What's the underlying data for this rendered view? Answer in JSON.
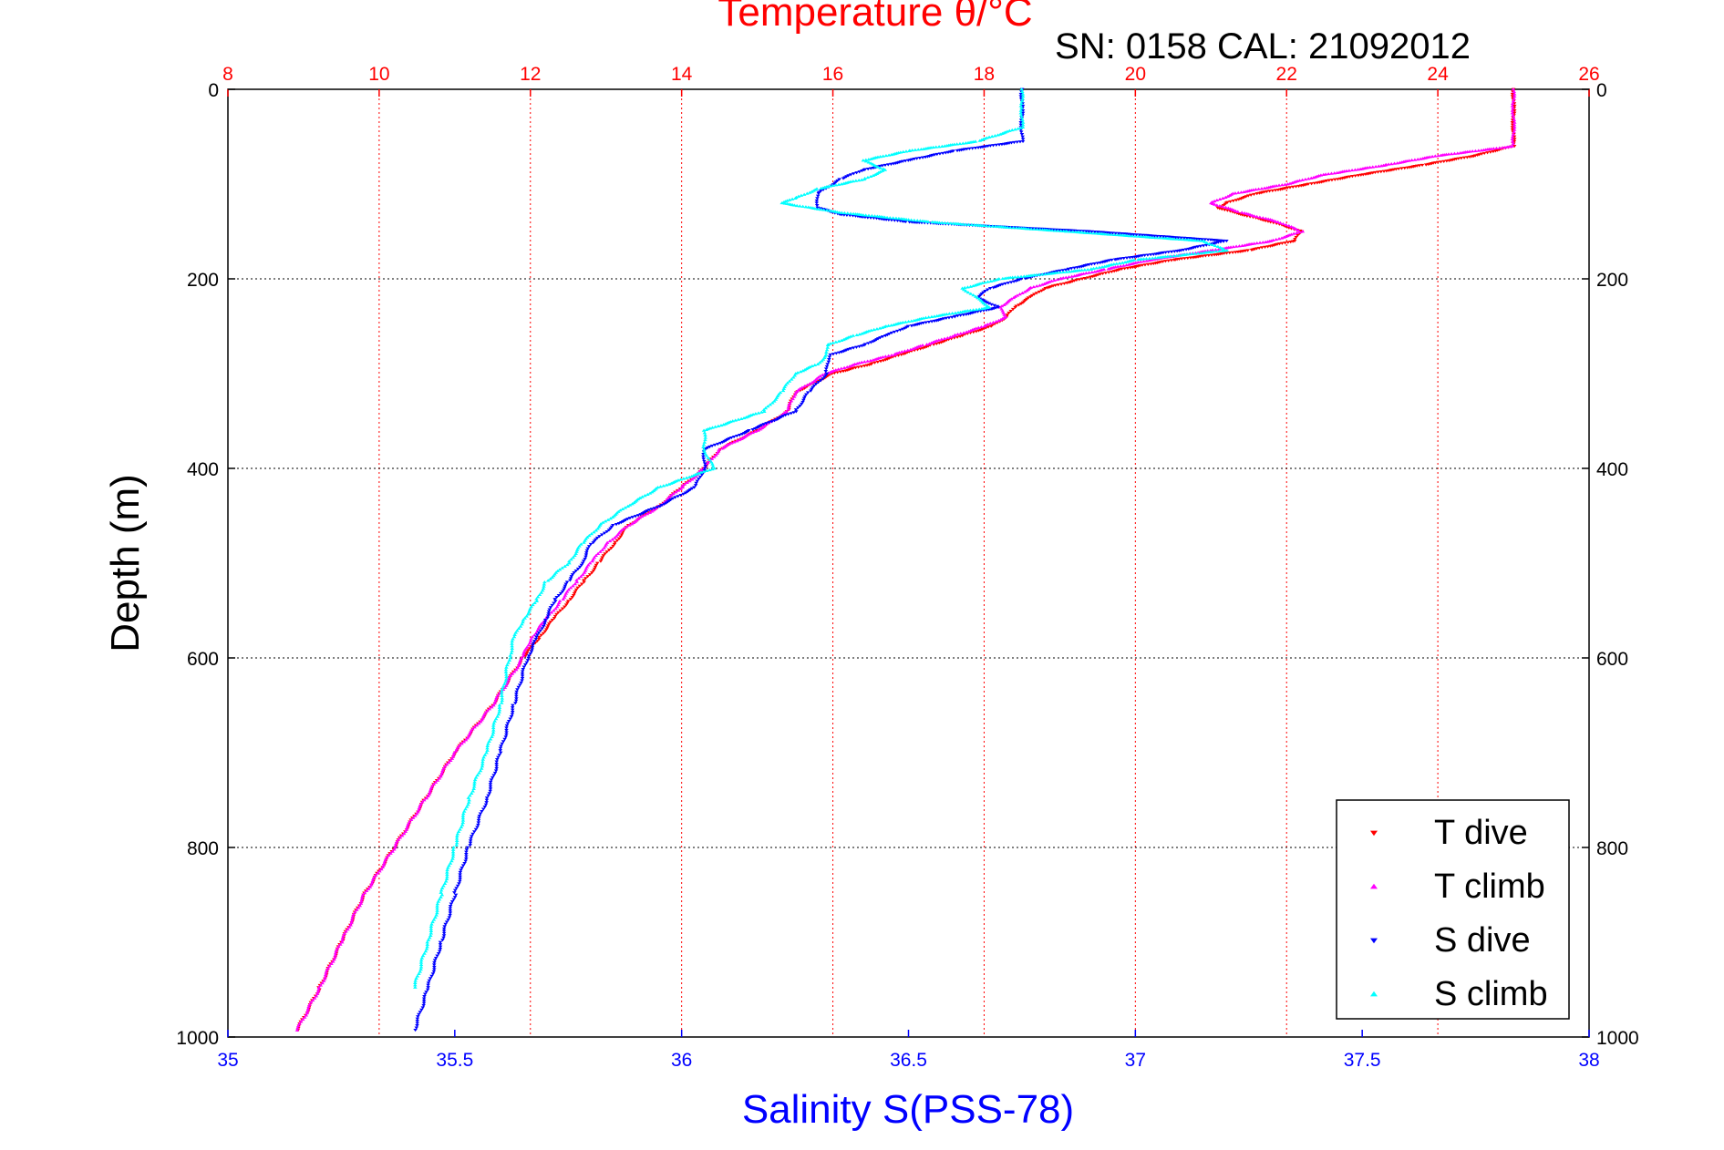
{
  "chart_data": {
    "type": "scatter",
    "annotation": "SN: 0158  CAL: 21092012",
    "xlabel_top": "Temperature θ/°C",
    "xlabel_bottom": "Salinity S(PSS-78)",
    "ylabel": "Depth (m)",
    "temperature_axis": {
      "range": [
        8,
        26
      ],
      "ticks": [
        "8",
        "10",
        "12",
        "14",
        "16",
        "18",
        "20",
        "22",
        "24",
        "26"
      ],
      "color": "#ff0000"
    },
    "salinity_axis": {
      "range": [
        35,
        38
      ],
      "ticks": [
        "35",
        "35.5",
        "36",
        "36.5",
        "37",
        "37.5",
        "38"
      ],
      "color": "#0000ff"
    },
    "depth_axis": {
      "range": [
        0,
        1000
      ],
      "reversed": true,
      "ticks_left": [
        "0",
        "200",
        "400",
        "600",
        "800",
        "1000"
      ],
      "ticks_right": [
        "0",
        "200",
        "400",
        "600",
        "800",
        "1000"
      ]
    },
    "grid": true,
    "legend_position": "bottom-right",
    "series": [
      {
        "name": "T dive",
        "axis": "temperature",
        "color": "#ff0000",
        "marker": "triangle-down",
        "depth": [
          0,
          20,
          40,
          60,
          70,
          80,
          90,
          100,
          110,
          120,
          125,
          130,
          140,
          150,
          160,
          170,
          180,
          190,
          200,
          210,
          220,
          230,
          240,
          250,
          260,
          270,
          280,
          290,
          300,
          320,
          340,
          360,
          380,
          400,
          420,
          440,
          460,
          480,
          500,
          520,
          540,
          560,
          580,
          600,
          650,
          700,
          750,
          800,
          850,
          900,
          950,
          995
        ],
        "values": [
          25.0,
          25.0,
          25.0,
          25.0,
          24.5,
          23.8,
          23.0,
          22.3,
          21.6,
          21.2,
          21.1,
          21.3,
          21.8,
          22.2,
          22.1,
          21.5,
          20.5,
          19.8,
          19.3,
          18.8,
          18.6,
          18.4,
          18.3,
          18.1,
          17.7,
          17.3,
          16.9,
          16.5,
          16.0,
          15.5,
          15.4,
          15.0,
          14.5,
          14.3,
          14.0,
          13.7,
          13.3,
          13.1,
          12.9,
          12.7,
          12.5,
          12.3,
          12.1,
          11.9,
          11.5,
          11.0,
          10.6,
          10.2,
          9.8,
          9.5,
          9.2,
          8.9
        ]
      },
      {
        "name": "T climb",
        "axis": "temperature",
        "color": "#ff00ff",
        "marker": "triangle-up",
        "depth": [
          0,
          20,
          40,
          60,
          70,
          80,
          90,
          100,
          110,
          120,
          130,
          140,
          150,
          160,
          170,
          180,
          190,
          200,
          210,
          220,
          230,
          240,
          250,
          260,
          270,
          280,
          290,
          300,
          320,
          340,
          360,
          380,
          400,
          420,
          440,
          460,
          480,
          500,
          520,
          540,
          560,
          580,
          600,
          650,
          700,
          750,
          800,
          850,
          900,
          950,
          995
        ],
        "values": [
          25.0,
          25.0,
          25.0,
          25.0,
          24.0,
          23.3,
          22.5,
          22.0,
          21.3,
          21.0,
          21.4,
          21.9,
          22.2,
          21.8,
          21.0,
          20.2,
          19.6,
          19.0,
          18.6,
          18.4,
          18.2,
          18.3,
          18.0,
          17.6,
          17.2,
          16.8,
          16.3,
          15.9,
          15.5,
          15.4,
          15.0,
          14.5,
          14.3,
          14.0,
          13.7,
          13.3,
          13.0,
          12.8,
          12.6,
          12.4,
          12.2,
          12.0,
          11.9,
          11.5,
          11.0,
          10.6,
          10.2,
          9.8,
          9.5,
          9.2,
          8.9
        ]
      },
      {
        "name": "S dive",
        "axis": "salinity",
        "color": "#0000ff",
        "marker": "triangle-down",
        "depth": [
          0,
          20,
          40,
          55,
          65,
          75,
          85,
          95,
          110,
          125,
          132,
          140,
          150,
          160,
          170,
          180,
          190,
          200,
          210,
          220,
          230,
          240,
          250,
          260,
          270,
          280,
          290,
          300,
          320,
          340,
          360,
          380,
          400,
          420,
          440,
          460,
          480,
          500,
          520,
          540,
          560,
          580,
          600,
          650,
          700,
          750,
          800,
          850,
          900,
          950,
          995
        ],
        "values": [
          36.75,
          36.75,
          36.75,
          36.75,
          36.6,
          36.5,
          36.4,
          36.35,
          36.3,
          36.3,
          36.35,
          36.5,
          36.9,
          37.2,
          37.1,
          36.95,
          36.85,
          36.75,
          36.68,
          36.65,
          36.7,
          36.6,
          36.5,
          36.45,
          36.4,
          36.33,
          36.32,
          36.32,
          36.28,
          36.25,
          36.15,
          36.05,
          36.05,
          36.03,
          35.95,
          35.85,
          35.8,
          35.78,
          35.75,
          35.72,
          35.7,
          35.68,
          35.66,
          35.63,
          35.6,
          35.57,
          35.53,
          35.5,
          35.47,
          35.44,
          35.41
        ]
      },
      {
        "name": "S climb",
        "axis": "salinity",
        "color": "#00ffff",
        "marker": "triangle-up",
        "depth": [
          0,
          20,
          40,
          55,
          65,
          75,
          85,
          95,
          105,
          115,
          120,
          130,
          140,
          150,
          160,
          170,
          180,
          190,
          200,
          210,
          220,
          230,
          240,
          250,
          260,
          270,
          280,
          290,
          300,
          320,
          340,
          360,
          380,
          400,
          420,
          440,
          460,
          480,
          500,
          520,
          540,
          560,
          580,
          600,
          650,
          700,
          750,
          800,
          850,
          900,
          950,
          995
        ],
        "values": [
          36.75,
          36.75,
          36.75,
          36.65,
          36.5,
          36.4,
          36.45,
          36.4,
          36.3,
          36.25,
          36.22,
          36.35,
          36.55,
          36.85,
          37.15,
          37.2,
          37.0,
          36.9,
          36.7,
          36.62,
          36.65,
          36.68,
          36.55,
          36.45,
          36.38,
          36.32,
          36.32,
          36.3,
          36.25,
          36.22,
          36.18,
          36.05,
          36.05,
          36.07,
          35.95,
          35.88,
          35.82,
          35.78,
          35.75,
          35.7,
          35.68,
          35.65,
          35.63,
          35.62,
          35.6,
          35.57,
          35.53,
          35.5,
          35.47,
          35.44,
          35.41
        ]
      }
    ]
  }
}
